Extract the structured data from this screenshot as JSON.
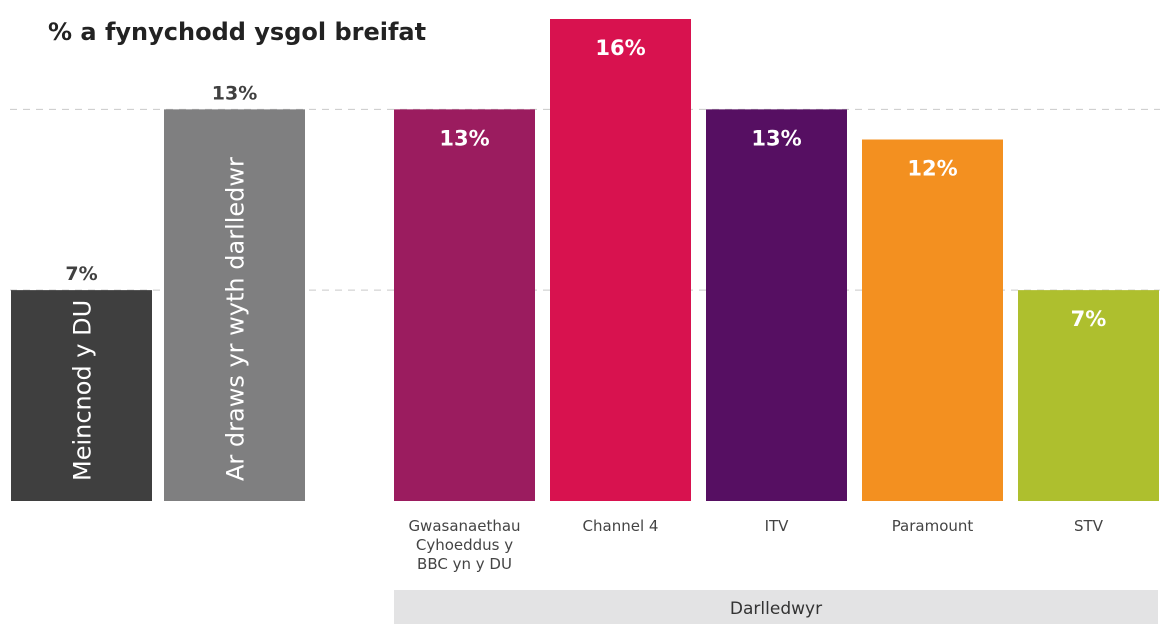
{
  "chart_data": {
    "type": "bar",
    "title": "% a fynychodd ysgol breifat",
    "xlabel": "",
    "ylabel": "",
    "ylim": [
      0,
      16
    ],
    "grid": false,
    "benchmarks": [
      {
        "category": "Meincnod y DU",
        "value": 7,
        "label": "7%",
        "color": "#3f3f3f"
      },
      {
        "category": "Ar draws yr wyth darlledwr",
        "value": 13,
        "label": "13%",
        "color": "#7f7f80"
      }
    ],
    "group": {
      "label": "Darlledwyr",
      "categories": [
        [
          "Gwasanaethau",
          "Cyhoeddus y",
          "BBC yn y DU"
        ],
        [
          "Channel 4"
        ],
        [
          "ITV"
        ],
        [
          "Paramount"
        ],
        [
          "STV"
        ]
      ],
      "values": [
        13,
        16,
        13,
        12,
        7
      ],
      "labels": [
        "13%",
        "16%",
        "13%",
        "12%",
        "7%"
      ],
      "colors": [
        "#9b1c5f",
        "#d8124f",
        "#560f62",
        "#f39020",
        "#aebf2e"
      ]
    },
    "reference_lines": [
      7,
      13
    ]
  }
}
